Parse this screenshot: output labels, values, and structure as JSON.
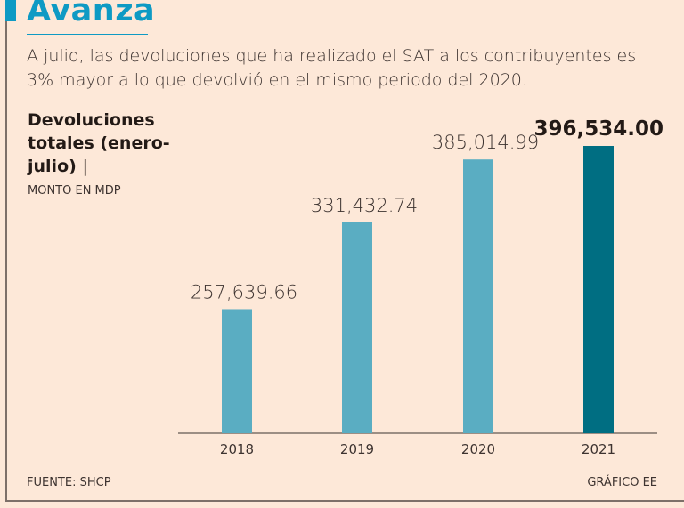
{
  "header": {
    "title": "Avanza",
    "subtitle": "A julio, las devoluciones que ha realizado el SAT a los contribuyentes es 3% mayor a lo que devolvió en el mismo periodo del 2020."
  },
  "footer": {
    "source": "FUENTE: SHCP",
    "credit": "GRÁFICO EE"
  },
  "colors": {
    "accent": "#0e9ac4",
    "bar": "#5aadc2",
    "bar_highlight": "#006e82",
    "background": "#fde8d8"
  },
  "chart_data": {
    "type": "bar",
    "title": "Devoluciones totales (enero-julio)",
    "title_separator": "|",
    "units": "MONTO EN MDP",
    "categories": [
      "2018",
      "2019",
      "2020",
      "2021"
    ],
    "values": [
      257639.66,
      331432.74,
      385014.99,
      396534.0
    ],
    "data_labels": [
      "257,639.66",
      "331,432.74",
      "385,014.99",
      "396,534.00"
    ],
    "highlight": "2021",
    "xlabel": "",
    "ylabel": "",
    "ylim": [
      152000,
      396534
    ],
    "grid": false,
    "legend": "none"
  }
}
